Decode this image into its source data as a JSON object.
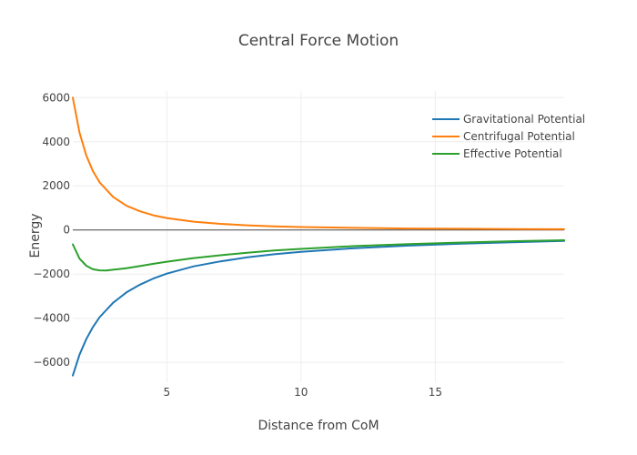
{
  "chart_data": {
    "type": "line",
    "title": "Central Force Motion",
    "xlabel": "Distance from CoM",
    "ylabel": "Energy",
    "xlim": [
      1.5,
      19.8
    ],
    "ylim": [
      -6900,
      6300
    ],
    "x_ticks": [
      5,
      10,
      15
    ],
    "x_tick_labels": [
      "5",
      "10",
      "15"
    ],
    "y_ticks": [
      -6000,
      -4000,
      -2000,
      0,
      2000,
      4000,
      6000
    ],
    "y_tick_labels": [
      "−6000",
      "−4000",
      "−2000",
      "0",
      "2000",
      "4000",
      "6000"
    ],
    "grid": true,
    "legend_position": "top-right",
    "series": [
      {
        "name": "Gravitational Potential",
        "color": "#1f77b4",
        "x": [
          1.5,
          1.75,
          2,
          2.25,
          2.5,
          3,
          3.5,
          4,
          4.5,
          5,
          6,
          7,
          8,
          9,
          10,
          12,
          14,
          16,
          18,
          19.8
        ],
        "y": [
          -6600,
          -5650,
          -4950,
          -4400,
          -3950,
          -3300,
          -2830,
          -2480,
          -2200,
          -1980,
          -1650,
          -1420,
          -1240,
          -1100,
          -990,
          -825,
          -710,
          -620,
          -550,
          -500
        ]
      },
      {
        "name": "Centrifugal Potential",
        "color": "#ff7f0e",
        "x": [
          1.5,
          1.75,
          2,
          2.25,
          2.5,
          3,
          3.5,
          4,
          4.5,
          5,
          6,
          7,
          8,
          9,
          10,
          12,
          14,
          16,
          18,
          19.8
        ],
        "y": [
          6000,
          4410,
          3380,
          2670,
          2160,
          1500,
          1100,
          845,
          667,
          540,
          375,
          276,
          211,
          167,
          135,
          94,
          69,
          53,
          42,
          34
        ]
      },
      {
        "name": "Effective Potential",
        "color": "#2ca02c",
        "x": [
          1.5,
          1.75,
          2,
          2.25,
          2.5,
          2.75,
          3,
          3.5,
          4,
          4.5,
          5,
          6,
          7,
          8,
          9,
          10,
          12,
          14,
          16,
          18,
          19.8
        ],
        "y": [
          -650,
          -1300,
          -1620,
          -1780,
          -1830,
          -1840,
          -1800,
          -1730,
          -1635,
          -1533,
          -1440,
          -1275,
          -1144,
          -1029,
          -933,
          -855,
          -731,
          -641,
          -567,
          -508,
          -466
        ]
      }
    ]
  }
}
